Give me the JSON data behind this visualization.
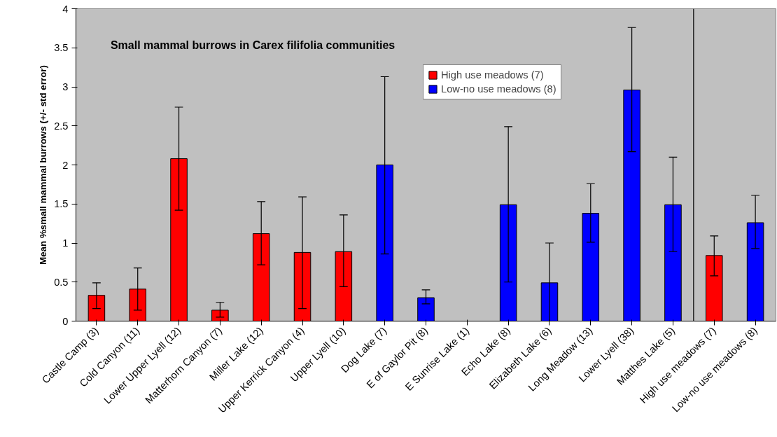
{
  "chart_data": {
    "type": "bar",
    "title": "Small mammal burrows in Carex filifolia communities",
    "ylabel": "Mean %small mammal burrows (+/- std error)",
    "categories": [
      "Castle Camp (3)",
      "Cold Canyon (11)",
      "Lower Upper Lyell (12)",
      "Matterhorn Canyon (7)",
      "Miller Lake (12)",
      "Upper Kerrick Canyon (4)",
      "Upper Lyell (10)",
      "Dog Lake (7)",
      "E of Gaylor Pit (8)",
      "E Sunrise Lake (1)",
      "Echo Lake (8)",
      "Elizabeth Lake (6)",
      "Long Meadow (13)",
      "Lower Lyell (38)",
      "Matthes Lake (5)",
      "High use meadows (7)",
      "Low-no use meadows (8)"
    ],
    "series": [
      {
        "name": "High use meadows (7)",
        "color": "#ff0000",
        "values": [
          0.33,
          0.41,
          2.08,
          0.14,
          1.12,
          0.88,
          0.89,
          null,
          null,
          null,
          null,
          null,
          null,
          null,
          null,
          0.84,
          null
        ],
        "errors": [
          [
            0.16,
            0.49
          ],
          [
            0.14,
            0.68
          ],
          [
            1.42,
            2.74
          ],
          [
            0.05,
            0.24
          ],
          [
            0.72,
            1.53
          ],
          [
            0.16,
            1.59
          ],
          [
            0.44,
            1.36
          ],
          null,
          null,
          null,
          null,
          null,
          null,
          null,
          null,
          [
            0.58,
            1.09
          ],
          null
        ]
      },
      {
        "name": "Low-no use meadows (8)",
        "color": "#0000ff",
        "values": [
          null,
          null,
          null,
          null,
          null,
          null,
          null,
          2.0,
          0.3,
          0,
          1.49,
          0.49,
          1.38,
          2.96,
          1.49,
          null,
          1.26
        ],
        "errors": [
          null,
          null,
          null,
          null,
          null,
          null,
          null,
          [
            0.86,
            3.13
          ],
          [
            0.22,
            0.4
          ],
          null,
          [
            0.5,
            2.49
          ],
          [
            0,
            1.0
          ],
          [
            1.01,
            1.76
          ],
          [
            2.17,
            3.76
          ],
          [
            0.89,
            2.1
          ],
          null,
          [
            0.93,
            1.61
          ]
        ]
      }
    ],
    "ylim": [
      0,
      4
    ],
    "yticks": [
      0,
      0.5,
      1,
      1.5,
      2,
      2.5,
      3,
      3.5,
      4
    ],
    "grid": false,
    "legend": "top"
  }
}
